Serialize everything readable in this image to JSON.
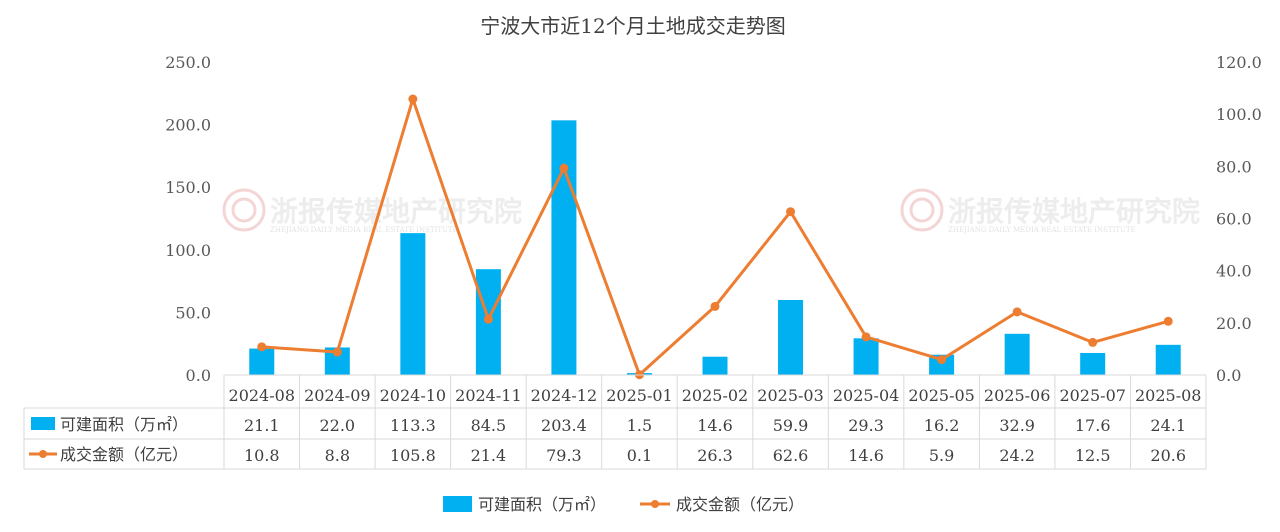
{
  "chart_data": {
    "type": "bar",
    "title": "宁波大市近12个月土地成交走势图",
    "categories": [
      "2024-08",
      "2024-09",
      "2024-10",
      "2024-11",
      "2024-12",
      "2025-01",
      "2025-02",
      "2025-03",
      "2025-04",
      "2025-05",
      "2025-06",
      "2025-07",
      "2025-08"
    ],
    "series": [
      {
        "name": "可建面积（万㎡）",
        "type": "bar",
        "axis": "left",
        "color": "#00B0F0",
        "values": [
          21.1,
          22.0,
          113.3,
          84.5,
          203.4,
          1.5,
          14.6,
          59.9,
          29.3,
          16.2,
          32.9,
          17.6,
          24.1
        ],
        "labels": [
          "21.1",
          "22.0",
          "113.3",
          "84.5",
          "203.4",
          "1.5",
          "14.6",
          "59.9",
          "29.3",
          "16.2",
          "32.9",
          "17.6",
          "24.1"
        ]
      },
      {
        "name": "成交金额（亿元）",
        "type": "line",
        "axis": "right",
        "color": "#ED7D31",
        "values": [
          10.8,
          8.8,
          105.8,
          21.4,
          79.3,
          0.1,
          26.3,
          62.6,
          14.6,
          5.9,
          24.2,
          12.5,
          20.6
        ],
        "labels": [
          "10.8",
          "8.8",
          "105.8",
          "21.4",
          "79.3",
          "0.1",
          "26.3",
          "62.6",
          "14.6",
          "5.9",
          "24.2",
          "12.5",
          "20.6"
        ]
      }
    ],
    "y_left": {
      "min": 0,
      "max": 250,
      "ticks": [
        "0.0",
        "50.0",
        "100.0",
        "150.0",
        "200.0",
        "250.0"
      ]
    },
    "y_right": {
      "min": 0,
      "max": 120,
      "ticks": [
        "0.0",
        "20.0",
        "40.0",
        "60.0",
        "80.0",
        "100.0",
        "120.0"
      ]
    },
    "grid": false,
    "legend_position": "bottom",
    "data_table": true
  },
  "watermark": {
    "text": "浙报传媒地产研究院",
    "subtext": "ZHEJIANG DAILY MEDIA REAL ESTATE INSTITUTE"
  }
}
